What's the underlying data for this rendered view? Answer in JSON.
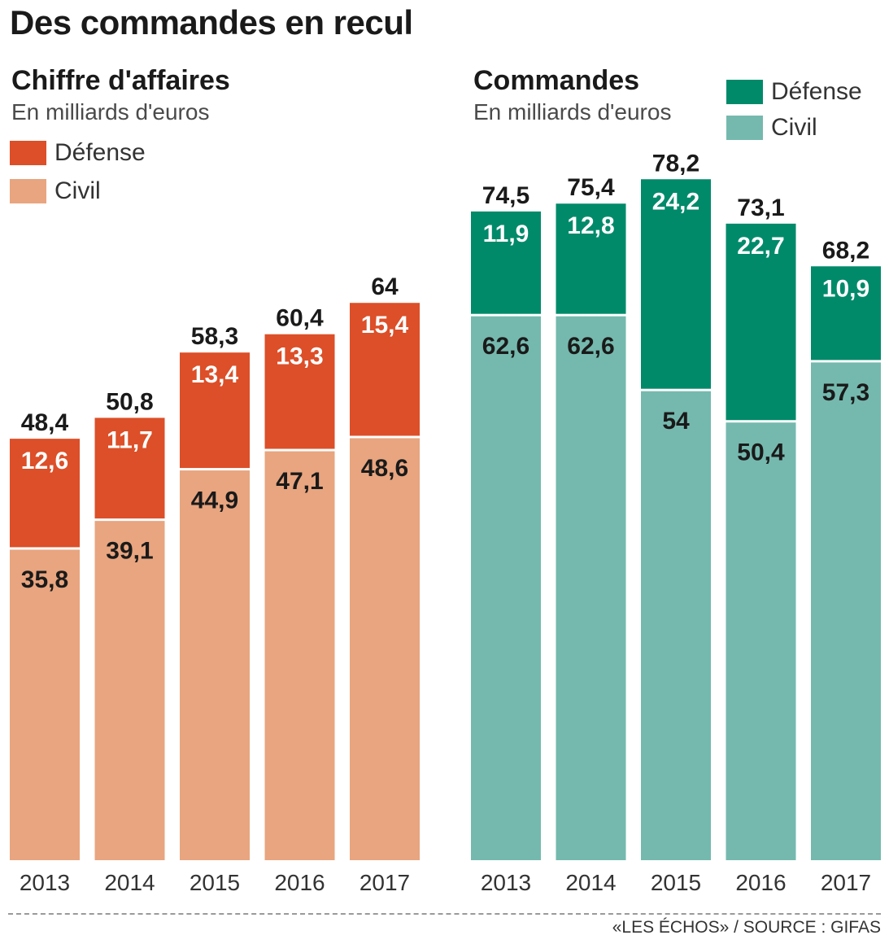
{
  "title": "Des commandes en recul",
  "source": "«LES ÉCHOS» / SOURCE : GIFAS",
  "chart_data": [
    {
      "type": "bar",
      "stacked": true,
      "title": "Chiffre d'affaires",
      "subtitle": "En milliards d'euros",
      "categories": [
        "2013",
        "2014",
        "2015",
        "2016",
        "2017"
      ],
      "series": [
        {
          "name": "Civil",
          "color": "#e8a57f",
          "values": [
            35.8,
            39.1,
            44.9,
            47.1,
            48.6
          ],
          "labels": [
            "35,8",
            "39,1",
            "44,9",
            "47,1",
            "48,6"
          ]
        },
        {
          "name": "Défense",
          "color": "#dc4f28",
          "values": [
            12.6,
            11.7,
            13.4,
            13.3,
            15.4
          ],
          "labels": [
            "12,6",
            "11,7",
            "13,4",
            "13,3",
            "15,4"
          ]
        }
      ],
      "totals": [
        "48,4",
        "50,8",
        "58,3",
        "60,4",
        "64"
      ],
      "legend_order": [
        "Défense",
        "Civil"
      ]
    },
    {
      "type": "bar",
      "stacked": true,
      "title": "Commandes",
      "subtitle": "En milliards d'euros",
      "categories": [
        "2013",
        "2014",
        "2015",
        "2016",
        "2017"
      ],
      "series": [
        {
          "name": "Civil",
          "color": "#75b9ae",
          "values": [
            62.6,
            62.6,
            54,
            50.4,
            57.3
          ],
          "labels": [
            "62,6",
            "62,6",
            "54",
            "50,4",
            "57,3"
          ]
        },
        {
          "name": "Défense",
          "color": "#008a6a",
          "values": [
            11.9,
            12.8,
            24.2,
            22.7,
            10.9
          ],
          "labels": [
            "11,9",
            "12,8",
            "24,2",
            "22,7",
            "10,9"
          ]
        }
      ],
      "totals": [
        "74,5",
        "75,4",
        "78,2",
        "73,1",
        "68,2"
      ],
      "legend_order": [
        "Défense",
        "Civil"
      ]
    }
  ]
}
